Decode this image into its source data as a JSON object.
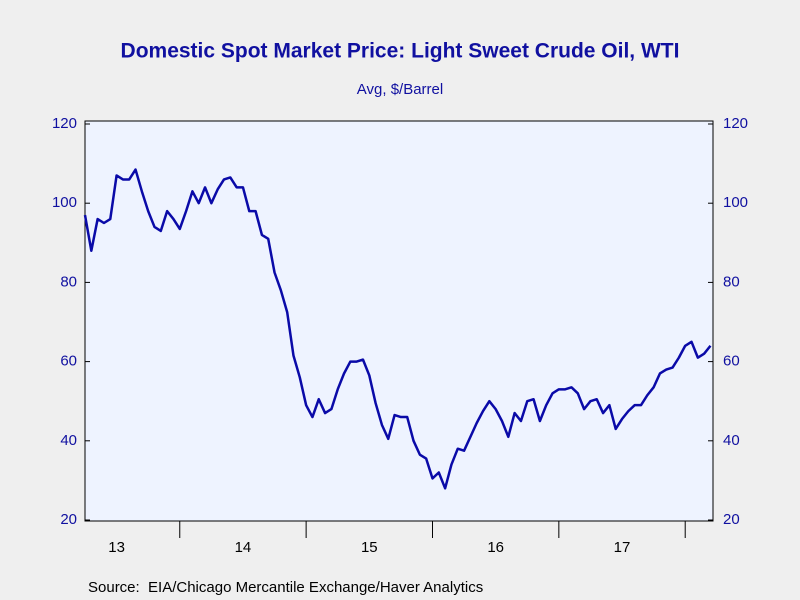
{
  "chart_data": {
    "type": "line",
    "title": "Domestic Spot Market Price: Light Sweet Crude Oil, WTI",
    "subtitle": "Avg, $/Barrel",
    "source": "Source:  EIA/Chicago Mercantile Exchange/Haver Analytics",
    "x": [
      2013.25,
      2013.3,
      2013.35,
      2013.4,
      2013.45,
      2013.5,
      2013.55,
      2013.6,
      2013.65,
      2013.7,
      2013.75,
      2013.8,
      2013.85,
      2013.9,
      2013.95,
      2014.0,
      2014.05,
      2014.1,
      2014.15,
      2014.2,
      2014.25,
      2014.3,
      2014.35,
      2014.4,
      2014.45,
      2014.5,
      2014.55,
      2014.6,
      2014.65,
      2014.7,
      2014.75,
      2014.8,
      2014.85,
      2014.9,
      2014.95,
      2015.0,
      2015.05,
      2015.1,
      2015.15,
      2015.2,
      2015.25,
      2015.3,
      2015.35,
      2015.4,
      2015.45,
      2015.5,
      2015.55,
      2015.6,
      2015.65,
      2015.7,
      2015.75,
      2015.8,
      2015.85,
      2015.9,
      2015.95,
      2016.0,
      2016.05,
      2016.1,
      2016.15,
      2016.2,
      2016.25,
      2016.3,
      2016.35,
      2016.4,
      2016.45,
      2016.5,
      2016.55,
      2016.6,
      2016.65,
      2016.7,
      2016.75,
      2016.8,
      2016.85,
      2016.9,
      2016.95,
      2017.0,
      2017.05,
      2017.1,
      2017.15,
      2017.2,
      2017.25,
      2017.3,
      2017.35,
      2017.4,
      2017.45,
      2017.5,
      2017.55,
      2017.6,
      2017.65,
      2017.7,
      2017.75,
      2017.8,
      2017.85,
      2017.9,
      2017.95,
      2018.0,
      2018.05,
      2018.1,
      2018.15,
      2018.2
    ],
    "series": [
      {
        "color": "#0a0aa8",
        "values": [
          97,
          88,
          96,
          95,
          96,
          107,
          106,
          106,
          108.5,
          103,
          98,
          94,
          93,
          98,
          96,
          93.5,
          98,
          103,
          100,
          104,
          100,
          103.5,
          106,
          106.5,
          104,
          104,
          98,
          98,
          92,
          91,
          82.5,
          78,
          72.5,
          61.5,
          56,
          49,
          46,
          50.5,
          47,
          48,
          53,
          57,
          60,
          60,
          60.5,
          56.5,
          49.5,
          44,
          40.5,
          46.5,
          46,
          46,
          40,
          36.5,
          35.5,
          30.5,
          32,
          28,
          34,
          38,
          37.5,
          41,
          44.5,
          47.5,
          50,
          48,
          45,
          41,
          47,
          45,
          50,
          50.5,
          45,
          49,
          52,
          53,
          53,
          53.5,
          52,
          48,
          50,
          50.5,
          47,
          49,
          43,
          45.5,
          47.5,
          49,
          49,
          51.5,
          53.5,
          57,
          58,
          58.5,
          61,
          64,
          65,
          61,
          62,
          64
        ]
      }
    ],
    "xlim": [
      2013.25,
      2018.22
    ],
    "xticks": [
      {
        "value": 2013.5,
        "label": "13"
      },
      {
        "value": 2014.5,
        "label": "14"
      },
      {
        "value": 2015.5,
        "label": "15"
      },
      {
        "value": 2016.5,
        "label": "16"
      },
      {
        "value": 2017.5,
        "label": "17"
      }
    ],
    "xminor": [
      2014,
      2015,
      2016,
      2017,
      2018
    ],
    "ylim": [
      20,
      120
    ],
    "yticks": [
      20,
      40,
      60,
      80,
      100,
      120
    ],
    "y2lim": [
      20,
      120
    ],
    "y2ticks": [
      20,
      40,
      60,
      80,
      100,
      120
    ],
    "plot_background": "#eef3ff",
    "text_color": "#1010a0"
  }
}
